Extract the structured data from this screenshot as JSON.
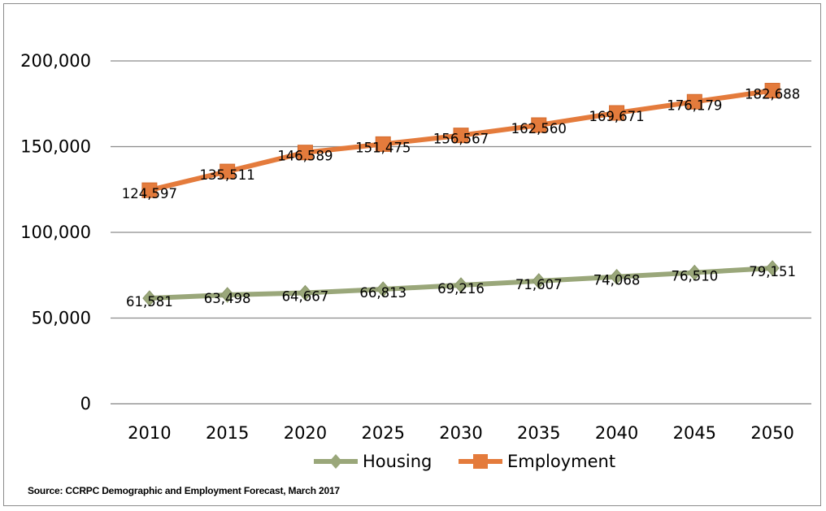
{
  "chart_data": {
    "type": "line",
    "categories": [
      "2010",
      "2015",
      "2020",
      "2025",
      "2030",
      "2035",
      "2040",
      "2045",
      "2050"
    ],
    "series": [
      {
        "name": "Housing",
        "color": "#9aa77a",
        "marker": "diamond",
        "values": [
          61581,
          63498,
          64667,
          66813,
          69216,
          71607,
          74068,
          76510,
          79151
        ],
        "labels": [
          "61,581",
          "63,498",
          "64,667",
          "66,813",
          "69,216",
          "71,607",
          "74,068",
          "76,510",
          "79,151"
        ]
      },
      {
        "name": "Employment",
        "color": "#e47b3c",
        "marker": "square",
        "values": [
          124597,
          135511,
          146589,
          151475,
          156567,
          162560,
          169671,
          176179,
          182688
        ],
        "labels": [
          "124,597",
          "135,511",
          "146,589",
          "151,475",
          "156,567",
          "162,560",
          "169,671",
          "176,179",
          "182,688"
        ]
      }
    ],
    "y_ticks": [
      "0",
      "50,000",
      "100,000",
      "150,000",
      "200,000"
    ],
    "ylim": [
      0,
      200000
    ],
    "y_step": 50000,
    "grid": true,
    "legend_position": "bottom"
  },
  "source_note": "Source: CCRPC Demographic and Employment Forecast, March 2017"
}
